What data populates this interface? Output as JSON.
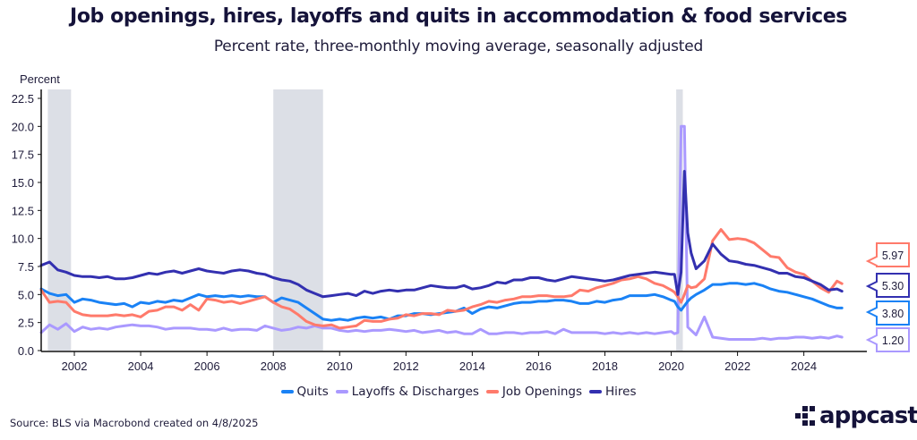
{
  "chart_data": {
    "type": "line",
    "title": "Job openings, hires, layoffs and quits in accommodation & food services",
    "subtitle": "Percent rate, three-monthly moving average, seasonally adjusted",
    "ylabel": "Percent",
    "xlabel": "",
    "ylim": [
      0,
      22.5
    ],
    "xlim": [
      2001.0,
      2025.9
    ],
    "yticks": [
      "0.0",
      "2.5",
      "5.0",
      "7.5",
      "10.0",
      "12.5",
      "15.0",
      "17.5",
      "20.0",
      "22.5"
    ],
    "ytick_values": [
      0,
      2.5,
      5,
      7.5,
      10,
      12.5,
      15,
      17.5,
      20,
      22.5
    ],
    "xticks": [
      "2002",
      "2004",
      "2006",
      "2008",
      "2010",
      "2012",
      "2014",
      "2016",
      "2018",
      "2020",
      "2022",
      "2024"
    ],
    "xtick_values": [
      2002,
      2004,
      2006,
      2008,
      2010,
      2012,
      2014,
      2016,
      2018,
      2020,
      2022,
      2024
    ],
    "grid": false,
    "legend_position": "bottom-center",
    "recessions": [
      {
        "start": 2001.2,
        "end": 2001.9
      },
      {
        "start": 2008.0,
        "end": 2009.5
      },
      {
        "start": 2020.15,
        "end": 2020.35
      }
    ],
    "x": [
      2001.0,
      2001.25,
      2001.5,
      2001.75,
      2002.0,
      2002.25,
      2002.5,
      2002.75,
      2003.0,
      2003.25,
      2003.5,
      2003.75,
      2004.0,
      2004.25,
      2004.5,
      2004.75,
      2005.0,
      2005.25,
      2005.5,
      2005.75,
      2006.0,
      2006.25,
      2006.5,
      2006.75,
      2007.0,
      2007.25,
      2007.5,
      2007.75,
      2008.0,
      2008.25,
      2008.5,
      2008.75,
      2009.0,
      2009.25,
      2009.5,
      2009.75,
      2010.0,
      2010.25,
      2010.5,
      2010.75,
      2011.0,
      2011.25,
      2011.5,
      2011.75,
      2012.0,
      2012.25,
      2012.5,
      2012.75,
      2013.0,
      2013.25,
      2013.5,
      2013.75,
      2014.0,
      2014.25,
      2014.5,
      2014.75,
      2015.0,
      2015.25,
      2015.5,
      2015.75,
      2016.0,
      2016.25,
      2016.5,
      2016.75,
      2017.0,
      2017.25,
      2017.5,
      2017.75,
      2018.0,
      2018.25,
      2018.5,
      2018.75,
      2019.0,
      2019.25,
      2019.5,
      2019.75,
      2020.0,
      2020.1,
      2020.2,
      2020.3,
      2020.4,
      2020.5,
      2020.6,
      2020.75,
      2021.0,
      2021.25,
      2021.5,
      2021.75,
      2022.0,
      2022.25,
      2022.5,
      2022.75,
      2023.0,
      2023.25,
      2023.5,
      2023.75,
      2024.0,
      2024.25,
      2024.5,
      2024.75,
      2025.0,
      2025.15
    ],
    "series": [
      {
        "name": "Quits",
        "color": "#1a82f5",
        "values": [
          5.5,
          5.1,
          4.9,
          5.0,
          4.3,
          4.6,
          4.5,
          4.3,
          4.2,
          4.1,
          4.2,
          3.9,
          4.3,
          4.2,
          4.4,
          4.3,
          4.5,
          4.4,
          4.7,
          5.0,
          4.8,
          4.9,
          4.8,
          4.9,
          4.8,
          4.9,
          4.8,
          4.8,
          4.3,
          4.7,
          4.5,
          4.3,
          3.8,
          3.3,
          2.8,
          2.7,
          2.8,
          2.7,
          2.9,
          3.0,
          2.9,
          3.0,
          2.8,
          3.1,
          3.1,
          3.3,
          3.3,
          3.2,
          3.3,
          3.4,
          3.5,
          3.8,
          3.3,
          3.7,
          3.9,
          3.8,
          4.0,
          4.2,
          4.3,
          4.3,
          4.4,
          4.4,
          4.5,
          4.5,
          4.4,
          4.2,
          4.2,
          4.4,
          4.3,
          4.5,
          4.6,
          4.9,
          4.9,
          4.9,
          5.0,
          4.8,
          4.5,
          4.4,
          3.9,
          3.6,
          4.0,
          4.4,
          4.7,
          5.0,
          5.4,
          5.9,
          5.9,
          6.0,
          6.0,
          5.9,
          6.0,
          5.8,
          5.5,
          5.3,
          5.2,
          5.0,
          4.8,
          4.6,
          4.3,
          4.0,
          3.8,
          3.8
        ]
      },
      {
        "name": "Layoffs & Discharges",
        "color": "#aa99ff",
        "values": [
          1.6,
          2.3,
          1.9,
          2.4,
          1.7,
          2.1,
          1.9,
          2.0,
          1.9,
          2.1,
          2.2,
          2.3,
          2.2,
          2.2,
          2.1,
          1.9,
          2.0,
          2.0,
          2.0,
          1.9,
          1.9,
          1.8,
          2.0,
          1.8,
          1.9,
          1.9,
          1.8,
          2.2,
          2.0,
          1.8,
          1.9,
          2.1,
          2.0,
          2.2,
          2.0,
          2.0,
          1.8,
          1.7,
          1.8,
          1.7,
          1.8,
          1.8,
          1.9,
          1.8,
          1.7,
          1.8,
          1.6,
          1.7,
          1.8,
          1.6,
          1.7,
          1.5,
          1.5,
          1.9,
          1.5,
          1.5,
          1.6,
          1.6,
          1.5,
          1.6,
          1.6,
          1.7,
          1.5,
          1.9,
          1.6,
          1.6,
          1.6,
          1.6,
          1.5,
          1.6,
          1.5,
          1.6,
          1.5,
          1.6,
          1.5,
          1.6,
          1.7,
          1.5,
          1.6,
          20.0,
          20.0,
          2.1,
          1.8,
          1.4,
          3.0,
          1.2,
          1.1,
          1.0,
          1.0,
          1.0,
          1.0,
          1.1,
          1.0,
          1.1,
          1.1,
          1.2,
          1.2,
          1.1,
          1.2,
          1.1,
          1.3,
          1.2
        ]
      },
      {
        "name": "Job Openings",
        "color": "#ff7a6b",
        "values": [
          5.4,
          4.3,
          4.4,
          4.3,
          3.5,
          3.2,
          3.1,
          3.1,
          3.1,
          3.2,
          3.1,
          3.2,
          3.0,
          3.5,
          3.6,
          3.9,
          3.9,
          3.6,
          4.1,
          3.6,
          4.6,
          4.5,
          4.3,
          4.4,
          4.2,
          4.4,
          4.6,
          4.8,
          4.3,
          3.9,
          3.7,
          3.2,
          2.6,
          2.3,
          2.2,
          2.3,
          2.0,
          2.1,
          2.2,
          2.7,
          2.6,
          2.6,
          2.8,
          2.9,
          3.2,
          3.1,
          3.3,
          3.3,
          3.2,
          3.6,
          3.5,
          3.6,
          3.9,
          4.1,
          4.4,
          4.3,
          4.5,
          4.6,
          4.8,
          4.8,
          4.9,
          4.9,
          4.8,
          4.8,
          4.9,
          5.4,
          5.3,
          5.6,
          5.8,
          6.0,
          6.3,
          6.4,
          6.6,
          6.4,
          6.0,
          5.8,
          5.4,
          5.2,
          4.8,
          4.3,
          5.0,
          5.8,
          5.6,
          5.7,
          6.4,
          9.8,
          10.8,
          9.9,
          10.0,
          9.9,
          9.6,
          9.0,
          8.4,
          8.3,
          7.4,
          7.0,
          6.8,
          6.2,
          5.6,
          5.2,
          6.2,
          5.97
        ]
      },
      {
        "name": "Hires",
        "color": "#3330b0",
        "values": [
          7.6,
          7.9,
          7.2,
          7.0,
          6.7,
          6.6,
          6.6,
          6.5,
          6.6,
          6.4,
          6.4,
          6.5,
          6.7,
          6.9,
          6.8,
          7.0,
          7.1,
          6.9,
          7.1,
          7.3,
          7.1,
          7.0,
          6.9,
          7.1,
          7.2,
          7.1,
          6.9,
          6.8,
          6.5,
          6.3,
          6.2,
          5.9,
          5.4,
          5.1,
          4.8,
          4.9,
          5.0,
          5.1,
          4.9,
          5.3,
          5.1,
          5.3,
          5.4,
          5.3,
          5.4,
          5.4,
          5.6,
          5.8,
          5.7,
          5.6,
          5.6,
          5.8,
          5.5,
          5.6,
          5.8,
          6.1,
          6.0,
          6.3,
          6.3,
          6.5,
          6.5,
          6.3,
          6.2,
          6.4,
          6.6,
          6.5,
          6.4,
          6.3,
          6.2,
          6.3,
          6.5,
          6.7,
          6.8,
          6.9,
          7.0,
          6.9,
          6.8,
          6.8,
          5.0,
          7.0,
          16.0,
          10.5,
          8.7,
          7.3,
          8.0,
          9.5,
          8.6,
          8.0,
          7.9,
          7.7,
          7.6,
          7.4,
          7.2,
          6.9,
          6.9,
          6.6,
          6.5,
          6.2,
          5.9,
          5.4,
          5.5,
          5.3
        ]
      }
    ],
    "end_labels": [
      {
        "series": "Job Openings",
        "value": "5.97",
        "color": "#ff7a6b"
      },
      {
        "series": "Hires",
        "value": "5.30",
        "color": "#3330b0"
      },
      {
        "series": "Quits",
        "value": "3.80",
        "color": "#1a82f5"
      },
      {
        "series": "Layoffs & Discharges",
        "value": "1.20",
        "color": "#aa99ff"
      }
    ]
  },
  "legend": [
    {
      "label": "Quits",
      "color": "#1a82f5"
    },
    {
      "label": "Layoffs & Discharges",
      "color": "#aa99ff"
    },
    {
      "label": "Job Openings",
      "color": "#ff7a6b"
    },
    {
      "label": "Hires",
      "color": "#3330b0"
    }
  ],
  "footer": {
    "source": "Source: BLS via Macrobond created on 4/8/2025",
    "logo_text": "appcast",
    "logo_tm": "™"
  }
}
